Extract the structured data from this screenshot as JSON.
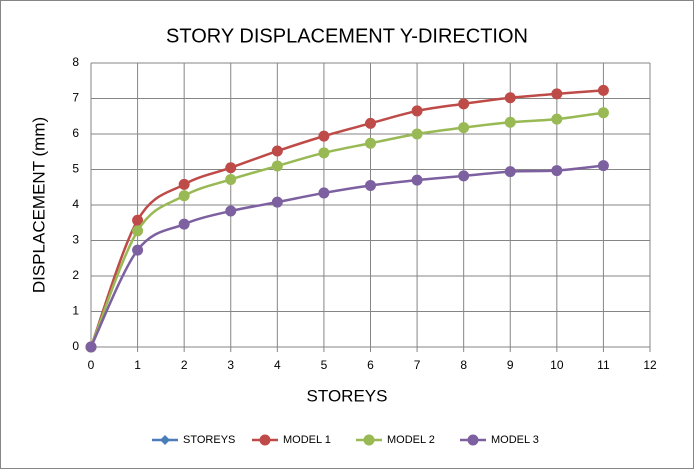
{
  "chart_data": {
    "type": "scatter-smooth",
    "title": "STORY DISPLACEMENT Y-DIRECTION",
    "x_label": "STOREYS",
    "y_label": "DISPLACEMENT (mm)",
    "xlim": [
      0,
      12
    ],
    "xticks": [
      0,
      1,
      2,
      3,
      4,
      5,
      6,
      7,
      8,
      9,
      10,
      11,
      12
    ],
    "ylim": [
      0,
      8
    ],
    "yticks": [
      0,
      1,
      2,
      3,
      4,
      5,
      6,
      7,
      8
    ],
    "grid": true,
    "legend": "bottom",
    "series": [
      {
        "name": "STOREYS",
        "color": "#4a7ebb",
        "marker": "diamond",
        "x": [
          0
        ],
        "values": [
          0
        ]
      },
      {
        "name": "MODEL 1",
        "color": "#be4b48",
        "marker": "circle",
        "x": [
          0,
          1,
          2,
          3,
          4,
          5,
          6,
          7,
          8,
          9,
          10,
          11
        ],
        "values": [
          0,
          3.57,
          4.58,
          5.05,
          5.52,
          5.94,
          6.3,
          6.65,
          6.85,
          7.02,
          7.13,
          7.23
        ]
      },
      {
        "name": "MODEL 2",
        "color": "#98b954",
        "marker": "circle",
        "x": [
          0,
          1,
          2,
          3,
          4,
          5,
          6,
          7,
          8,
          9,
          10,
          11
        ],
        "values": [
          0,
          3.27,
          4.26,
          4.72,
          5.1,
          5.47,
          5.74,
          6.0,
          6.18,
          6.33,
          6.42,
          6.6
        ]
      },
      {
        "name": "MODEL 3",
        "color": "#7d60a0",
        "marker": "circle",
        "x": [
          0,
          1,
          2,
          3,
          4,
          5,
          6,
          7,
          8,
          9,
          10,
          11
        ],
        "values": [
          0,
          2.73,
          3.46,
          3.83,
          4.08,
          4.34,
          4.55,
          4.7,
          4.82,
          4.94,
          4.97,
          5.11
        ]
      }
    ]
  }
}
